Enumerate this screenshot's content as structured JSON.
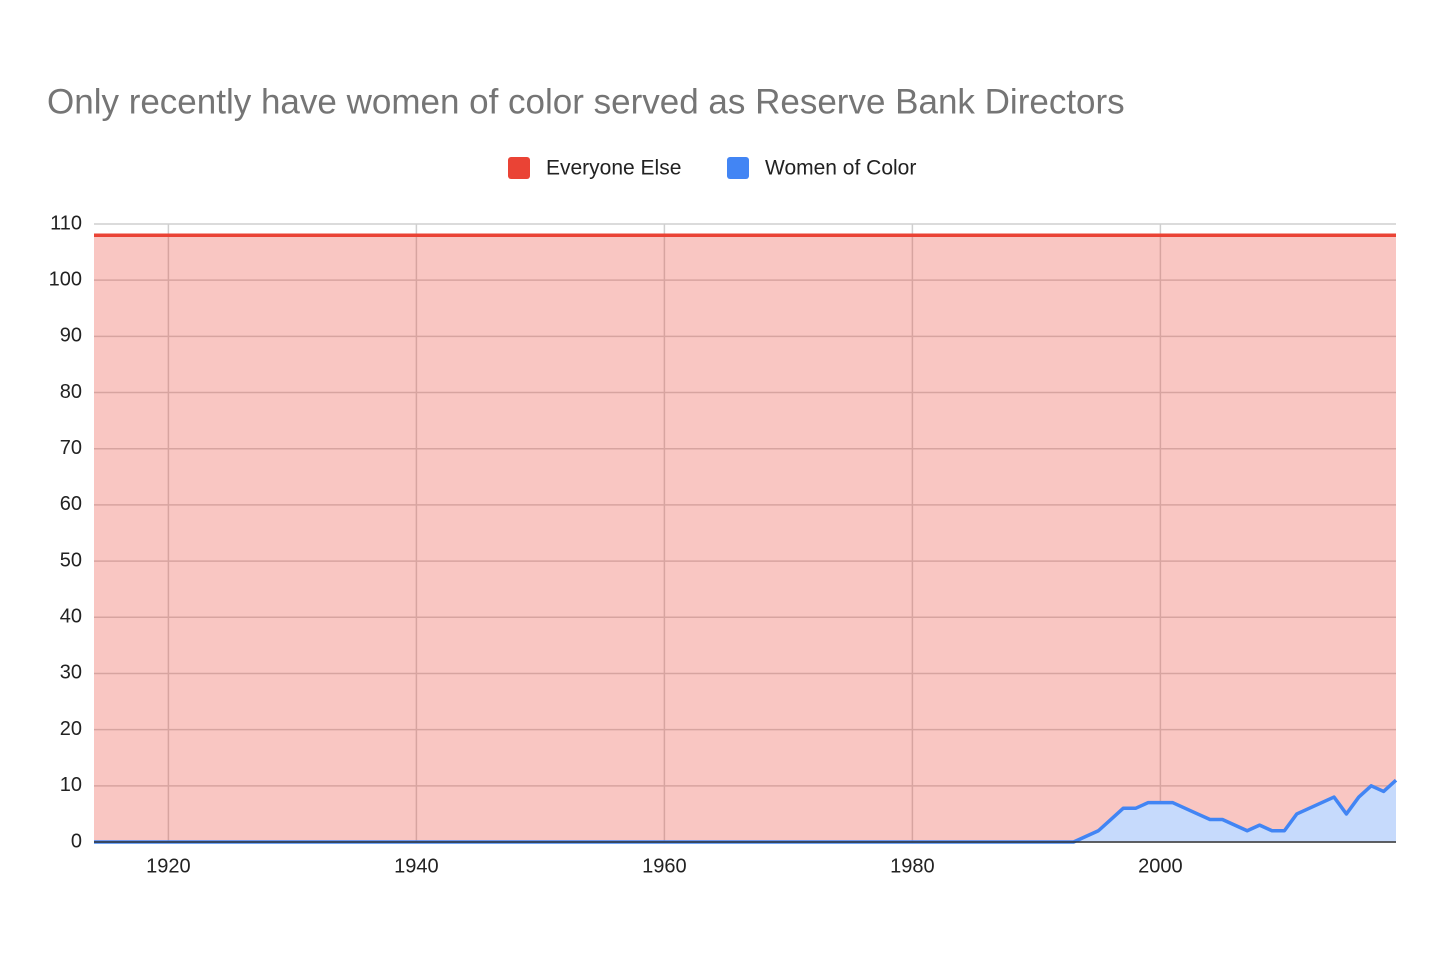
{
  "chart_data": {
    "type": "area",
    "title": "Only recently have women of color served as Reserve Bank Directors",
    "x": [
      1914,
      1993,
      1994,
      1995,
      1996,
      1997,
      1998,
      1999,
      2000,
      2001,
      2002,
      2003,
      2004,
      2005,
      2006,
      2007,
      2008,
      2009,
      2010,
      2011,
      2012,
      2013,
      2014,
      2015,
      2016,
      2017,
      2018,
      2019
    ],
    "series": [
      {
        "name": "Everyone Else",
        "color": "#ea4335",
        "values": [
          108,
          108,
          108,
          108,
          108,
          108,
          108,
          108,
          108,
          108,
          108,
          108,
          108,
          108,
          108,
          108,
          108,
          108,
          108,
          108,
          108,
          108,
          108,
          108,
          108,
          108,
          108,
          108
        ]
      },
      {
        "name": "Women of Color",
        "color": "#4285f4",
        "values": [
          0,
          0,
          1,
          2,
          4,
          6,
          6,
          7,
          7,
          7,
          6,
          5,
          4,
          4,
          3,
          2,
          3,
          2,
          2,
          5,
          6,
          7,
          8,
          5,
          8,
          10,
          9,
          11
        ]
      }
    ],
    "xlim": [
      1914,
      2019
    ],
    "xticks": [
      1920,
      1940,
      1960,
      1980,
      2000
    ],
    "ylim": [
      0,
      110
    ],
    "yticks": [
      0,
      10,
      20,
      30,
      40,
      50,
      60,
      70,
      80,
      90,
      100,
      110
    ],
    "grid": true,
    "legend": "top"
  }
}
